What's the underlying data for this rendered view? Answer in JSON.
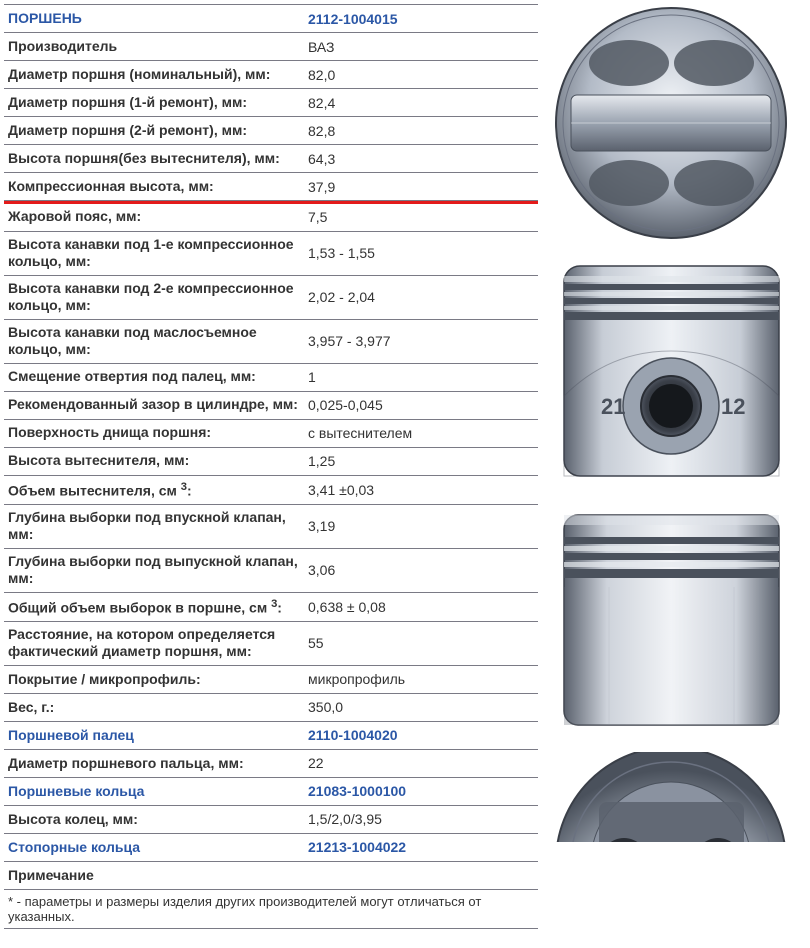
{
  "header": {
    "title_label": "ПОРШЕНЬ",
    "title_value": "2112-1004015"
  },
  "rows": [
    {
      "label": "Производитель",
      "value": "ВАЗ"
    },
    {
      "label": "Диаметр поршня (номинальный), мм:",
      "value": "82,0"
    },
    {
      "label": "Диаметр поршня (1-й ремонт), мм:",
      "value": "82,4"
    },
    {
      "label": "Диаметр поршня (2-й ремонт), мм:",
      "value": "82,8"
    },
    {
      "label": "Высота поршня(без вытеснителя), мм:",
      "value": "64,3"
    },
    {
      "label": "Компрессионная высота, мм:",
      "value": "37,9",
      "highlight": true
    },
    {
      "label": "Жаровой пояс, мм:",
      "value": "7,5"
    },
    {
      "label": "Высота канавки под 1-е компрессионное кольцо, мм:",
      "value": "1,53 - 1,55",
      "tall": true
    },
    {
      "label": "Высота канавки под 2-е компрессионное кольцо, мм:",
      "value": "2,02 - 2,04",
      "tall": true
    },
    {
      "label": "Высота канавки под маслосъемное кольцо, мм:",
      "value": "3,957 - 3,977",
      "tall": true
    },
    {
      "label": "Смещение отвертия под палец, мм:",
      "value": "1"
    },
    {
      "label": "Рекомендованный зазор в цилиндре, мм:",
      "value": "0,025-0,045"
    },
    {
      "label": "Поверхность днища поршня:",
      "value": "с вытеснителем"
    },
    {
      "label": "Высота вытеснителя, мм:",
      "value": "1,25"
    },
    {
      "label": "Объем вытеснителя, см",
      "sup": "3",
      "label_suffix": ":",
      "value": "3,41 ±0,03"
    },
    {
      "label": "Глубина выборки под впускной клапан, мм:",
      "value": "3,19",
      "tall": true
    },
    {
      "label": "Глубина выборки под выпускной клапан, мм:",
      "value": "3,06",
      "tall": true
    },
    {
      "label": "Общий объем выборок в поршне, см",
      "sup": "3",
      "label_suffix": ":",
      "value": "0,638 ± 0,08"
    },
    {
      "label": "Расстояние, на котором определяется фактический диаметр поршня, мм:",
      "value": "55",
      "tall": true
    },
    {
      "label": "Покрытие / микропрофиль:",
      "value": "микропрофиль"
    },
    {
      "label": "Вес, г.:",
      "value": "350,0"
    },
    {
      "label": "Поршневой палец",
      "value": "2110-1004020",
      "link": true
    },
    {
      "label": "Диаметр поршневого пальца, мм:",
      "value": "22"
    },
    {
      "label": "Поршневые кольца",
      "value": "21083-1000100",
      "link": true
    },
    {
      "label": "Высота колец, мм:",
      "value": "1,5/2,0/3,95"
    },
    {
      "label": "Стопорные кольца",
      "value": "21213-1004022",
      "link": true
    },
    {
      "label": "Примечание",
      "value": ""
    }
  ],
  "footnote": "* - параметры и размеры изделия других производителей могут отличаться от указанных.",
  "colors": {
    "link": "#2b57a6",
    "border": "#7a7a85",
    "red": "#e31b1b",
    "metal_light": "#d8dde4",
    "metal_mid": "#a8b0bc",
    "metal_dark": "#6a7180",
    "metal_shadow": "#3a3f48"
  },
  "images": {
    "top_view": "piston-top-view",
    "side_view_pin": "piston-side-pin-view",
    "side_view_rings": "piston-side-rings-view",
    "bottom_view": "piston-bottom-view"
  }
}
